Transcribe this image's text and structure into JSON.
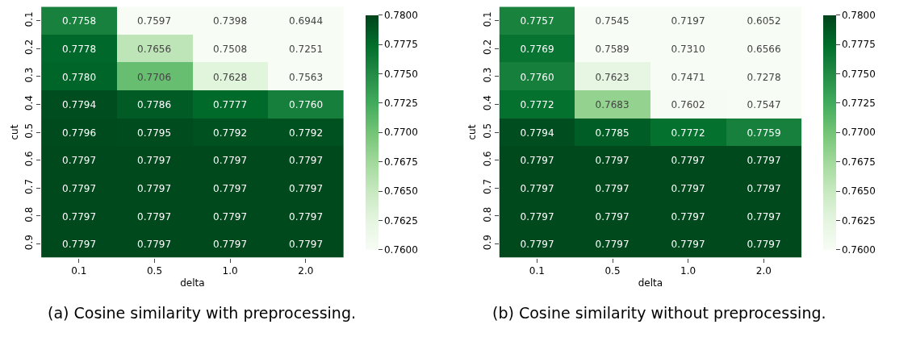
{
  "chart_data": [
    {
      "type": "heatmap",
      "xlabel": "delta",
      "ylabel": "cut",
      "categories": [
        "0.1",
        "0.5",
        "1.0",
        "2.0"
      ],
      "y_categories": [
        "0.1",
        "0.2",
        "0.3",
        "0.4",
        "0.5",
        "0.6",
        "0.7",
        "0.8",
        "0.9"
      ],
      "cells": [
        [
          0.7758,
          0.7597,
          0.7398,
          0.6944
        ],
        [
          0.7778,
          0.7656,
          0.7508,
          0.7251
        ],
        [
          0.778,
          0.7706,
          0.7628,
          0.7563
        ],
        [
          0.7794,
          0.7786,
          0.7777,
          0.776
        ],
        [
          0.7796,
          0.7795,
          0.7792,
          0.7792
        ],
        [
          0.7797,
          0.7797,
          0.7797,
          0.7797
        ],
        [
          0.7797,
          0.7797,
          0.7797,
          0.7797
        ],
        [
          0.7797,
          0.7797,
          0.7797,
          0.7797
        ],
        [
          0.7797,
          0.7797,
          0.7797,
          0.7797
        ]
      ],
      "cell_labels": [
        [
          "0.7758",
          "0.7597",
          "0.7398",
          "0.6944"
        ],
        [
          "0.7778",
          "0.7656",
          "0.7508",
          "0.7251"
        ],
        [
          "0.7780",
          "0.7706",
          "0.7628",
          "0.7563"
        ],
        [
          "0.7794",
          "0.7786",
          "0.7777",
          "0.7760"
        ],
        [
          "0.7796",
          "0.7795",
          "0.7792",
          "0.7792"
        ],
        [
          "0.7797",
          "0.7797",
          "0.7797",
          "0.7797"
        ],
        [
          "0.7797",
          "0.7797",
          "0.7797",
          "0.7797"
        ],
        [
          "0.7797",
          "0.7797",
          "0.7797",
          "0.7797"
        ],
        [
          "0.7797",
          "0.7797",
          "0.7797",
          "0.7797"
        ]
      ],
      "clim": [
        0.76,
        0.78
      ],
      "cticks": [
        {
          "value": 0.76,
          "label": "0.7600"
        },
        {
          "value": 0.7625,
          "label": "0.7625"
        },
        {
          "value": 0.765,
          "label": "0.7650"
        },
        {
          "value": 0.7675,
          "label": "0.7675"
        },
        {
          "value": 0.77,
          "label": "0.7700"
        },
        {
          "value": 0.7725,
          "label": "0.7725"
        },
        {
          "value": 0.775,
          "label": "0.7750"
        },
        {
          "value": 0.7775,
          "label": "0.7775"
        },
        {
          "value": 0.78,
          "label": "0.7800"
        }
      ],
      "annotations": [
        "(a) Cosine similarity with preprocessing."
      ]
    },
    {
      "type": "heatmap",
      "xlabel": "delta",
      "ylabel": "cut",
      "categories": [
        "0.1",
        "0.5",
        "1.0",
        "2.0"
      ],
      "y_categories": [
        "0.1",
        "0.2",
        "0.3",
        "0.4",
        "0.5",
        "0.6",
        "0.7",
        "0.8",
        "0.9"
      ],
      "cells": [
        [
          0.7757,
          0.7545,
          0.7197,
          0.6052
        ],
        [
          0.7769,
          0.7589,
          0.731,
          0.6566
        ],
        [
          0.776,
          0.7623,
          0.7471,
          0.7278
        ],
        [
          0.7772,
          0.7683,
          0.7602,
          0.7547
        ],
        [
          0.7794,
          0.7785,
          0.7772,
          0.7759
        ],
        [
          0.7797,
          0.7797,
          0.7797,
          0.7797
        ],
        [
          0.7797,
          0.7797,
          0.7797,
          0.7797
        ],
        [
          0.7797,
          0.7797,
          0.7797,
          0.7797
        ],
        [
          0.7797,
          0.7797,
          0.7797,
          0.7797
        ]
      ],
      "cell_labels": [
        [
          "0.7757",
          "0.7545",
          "0.7197",
          "0.6052"
        ],
        [
          "0.7769",
          "0.7589",
          "0.7310",
          "0.6566"
        ],
        [
          "0.7760",
          "0.7623",
          "0.7471",
          "0.7278"
        ],
        [
          "0.7772",
          "0.7683",
          "0.7602",
          "0.7547"
        ],
        [
          "0.7794",
          "0.7785",
          "0.7772",
          "0.7759"
        ],
        [
          "0.7797",
          "0.7797",
          "0.7797",
          "0.7797"
        ],
        [
          "0.7797",
          "0.7797",
          "0.7797",
          "0.7797"
        ],
        [
          "0.7797",
          "0.7797",
          "0.7797",
          "0.7797"
        ],
        [
          "0.7797",
          "0.7797",
          "0.7797",
          "0.7797"
        ]
      ],
      "clim": [
        0.76,
        0.78
      ],
      "cticks": [
        {
          "value": 0.76,
          "label": "0.7600"
        },
        {
          "value": 0.7625,
          "label": "0.7625"
        },
        {
          "value": 0.765,
          "label": "0.7650"
        },
        {
          "value": 0.7675,
          "label": "0.7675"
        },
        {
          "value": 0.77,
          "label": "0.7700"
        },
        {
          "value": 0.7725,
          "label": "0.7725"
        },
        {
          "value": 0.775,
          "label": "0.7750"
        },
        {
          "value": 0.7775,
          "label": "0.7775"
        },
        {
          "value": 0.78,
          "label": "0.7800"
        }
      ],
      "annotations": [
        "(b) Cosine similarity without preprocessing."
      ]
    }
  ]
}
